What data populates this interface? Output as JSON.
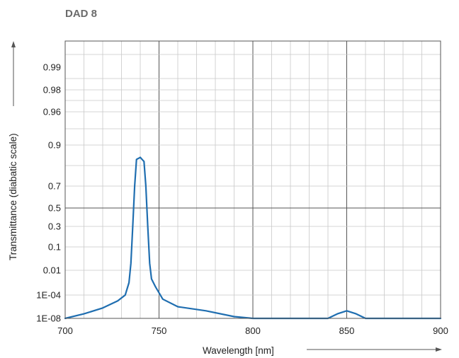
{
  "chart_data": {
    "type": "line",
    "title": "DAD 8",
    "xlabel": "Wavelength [nm]",
    "ylabel": "Transmittance (diabatic scale)",
    "xlim": [
      700,
      900
    ],
    "x_ticks": [
      700,
      750,
      800,
      850,
      900
    ],
    "y_ticks": [
      "1E-08",
      "1E-04",
      "0.01",
      "0.1",
      "0.3",
      "0.5",
      "0.7",
      "0.9",
      "0.96",
      "0.98",
      "0.99"
    ],
    "grid": true,
    "legend": "none",
    "colors": {
      "line": "#1f6eb0",
      "grid_minor": "#c8c8c8",
      "grid_major": "#555555"
    },
    "series": [
      {
        "points": [
          [
            700,
            1e-08
          ],
          [
            710,
            6e-08
          ],
          [
            720,
            6e-07
          ],
          [
            728,
            1e-05
          ],
          [
            732,
            0.0001
          ],
          [
            734,
            0.001
          ],
          [
            735,
            0.02
          ],
          [
            736,
            0.3
          ],
          [
            737,
            0.7
          ],
          [
            738,
            0.83
          ],
          [
            739,
            0.835
          ],
          [
            740,
            0.84
          ],
          [
            741,
            0.83
          ],
          [
            742,
            0.82
          ],
          [
            743,
            0.7
          ],
          [
            744,
            0.3
          ],
          [
            745,
            0.02
          ],
          [
            746,
            0.002
          ],
          [
            748,
            0.0005
          ],
          [
            752,
            2e-05
          ],
          [
            760,
            1e-06
          ],
          [
            775,
            2e-07
          ],
          [
            790,
            2e-08
          ],
          [
            800,
            1e-08
          ],
          [
            810,
            6e-09
          ],
          [
            820,
            3e-09
          ],
          [
            830,
            4e-09
          ],
          [
            840,
            1e-08
          ],
          [
            845,
            6e-08
          ],
          [
            850,
            2e-07
          ],
          [
            855,
            6e-08
          ],
          [
            860,
            1e-08
          ],
          [
            870,
            3e-09
          ],
          [
            880,
            1e-09
          ],
          [
            890,
            2e-09
          ],
          [
            900,
            6e-09
          ]
        ]
      }
    ]
  }
}
